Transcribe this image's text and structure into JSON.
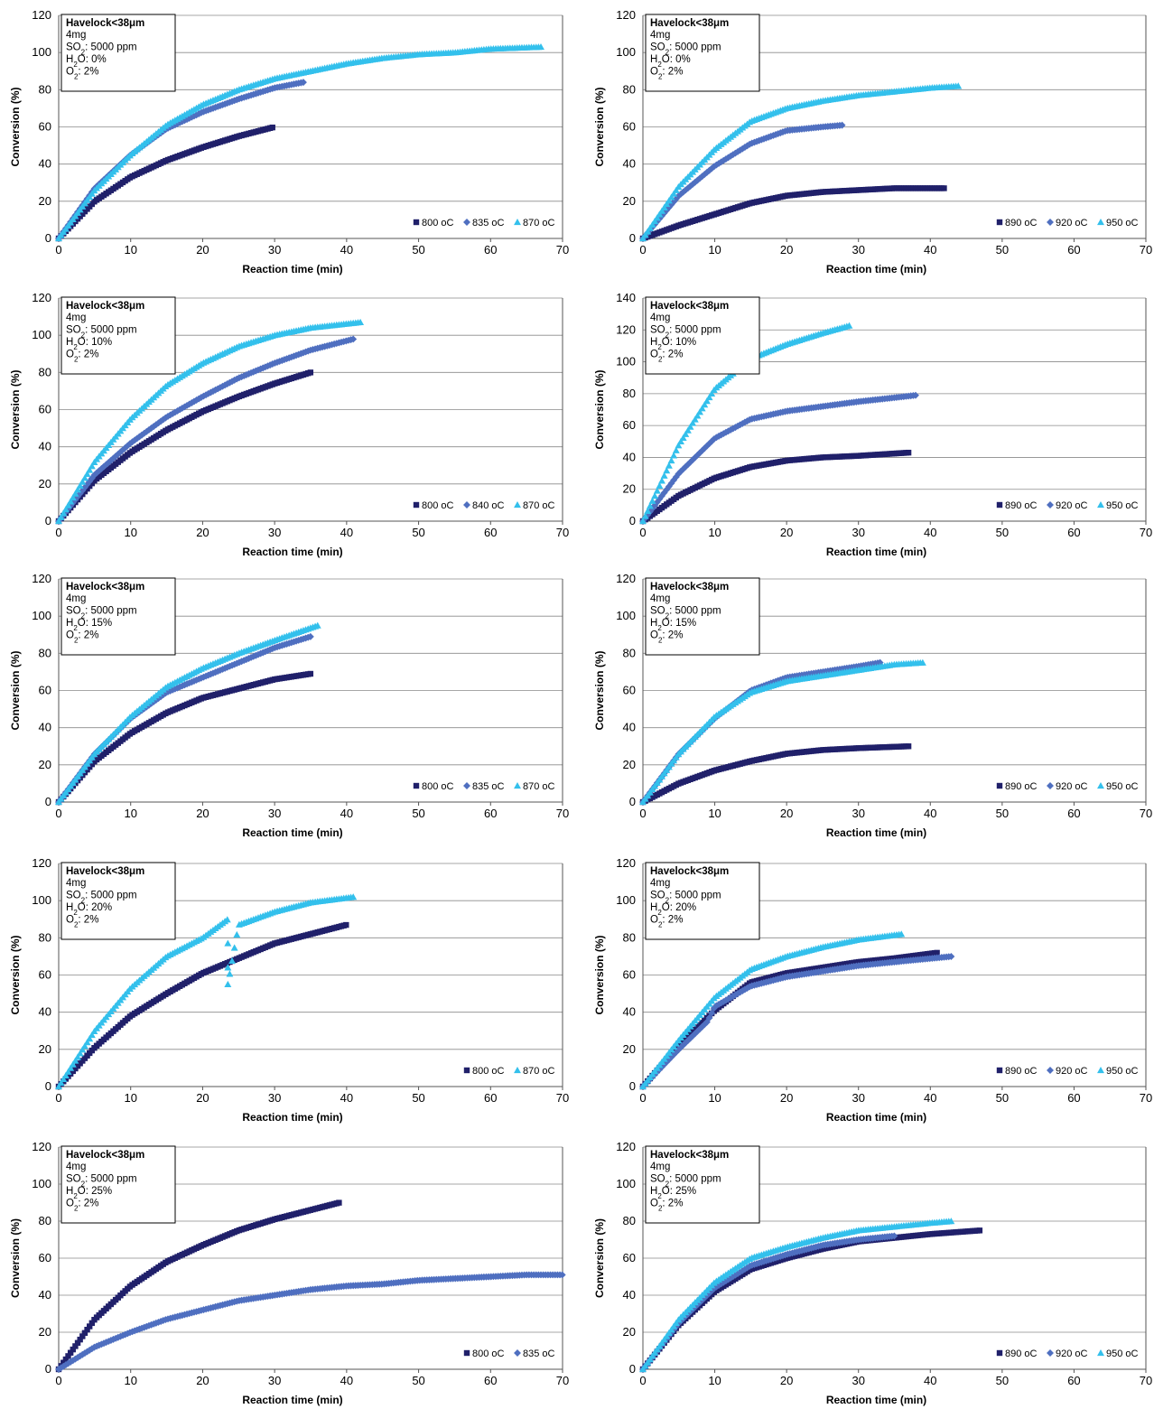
{
  "colors": {
    "dark": "#20206a",
    "mid": "#4f6fc0",
    "light": "#33c0ec",
    "grid": "#8a8a8a",
    "axis": "#555555"
  },
  "chart_data": [
    {
      "type": "scatter",
      "annotation": {
        "title": "Havelock<38μm",
        "lines": [
          "4mg",
          "SO2: 5000 ppm",
          "H2O: 0%",
          "O2: 2%"
        ]
      },
      "xlabel": "Reaction time (min)",
      "ylabel": "Conversion (%)",
      "xlim": [
        0,
        70
      ],
      "ylim": [
        0,
        120
      ],
      "xticks": [
        0,
        10,
        20,
        30,
        40,
        50,
        60,
        70
      ],
      "yticks": [
        0,
        20,
        40,
        60,
        80,
        100,
        120
      ],
      "grid": "horizontal",
      "legend_position": "bottom-right",
      "series": [
        {
          "name": "800 oC",
          "marker": "square",
          "color": "dark",
          "x": [
            0,
            5,
            10,
            15,
            20,
            25,
            30
          ],
          "y": [
            0,
            20,
            33,
            42,
            49,
            55,
            60
          ]
        },
        {
          "name": "835 oC",
          "marker": "diamond",
          "color": "mid",
          "x": [
            0,
            5,
            10,
            15,
            20,
            25,
            30,
            34
          ],
          "y": [
            0,
            27,
            45,
            59,
            68,
            75,
            81,
            84
          ]
        },
        {
          "name": "870 oC",
          "marker": "triangle",
          "color": "light",
          "x": [
            0,
            5,
            10,
            15,
            20,
            25,
            30,
            35,
            40,
            45,
            50,
            55,
            60,
            67
          ],
          "y": [
            0,
            26,
            45,
            61,
            72,
            80,
            86,
            90,
            94,
            97,
            99,
            100,
            102,
            103
          ]
        }
      ]
    },
    {
      "type": "scatter",
      "annotation": {
        "title": "Havelock<38μm",
        "lines": [
          "4mg",
          "SO2: 5000 ppm",
          "H2O: 0%",
          "O2: 2%"
        ]
      },
      "xlabel": "Reaction time (min)",
      "ylabel": "Conversion (%)",
      "xlim": [
        0,
        70
      ],
      "ylim": [
        0,
        120
      ],
      "xticks": [
        0,
        10,
        20,
        30,
        40,
        50,
        60,
        70
      ],
      "yticks": [
        0,
        20,
        40,
        60,
        80,
        100,
        120
      ],
      "grid": "horizontal",
      "legend_position": "bottom-right",
      "series": [
        {
          "name": "890 oC",
          "marker": "square",
          "color": "dark",
          "x": [
            0,
            5,
            10,
            15,
            20,
            25,
            30,
            35,
            42
          ],
          "y": [
            0,
            7,
            13,
            19,
            23,
            25,
            26,
            27,
            27
          ]
        },
        {
          "name": "920 oC",
          "marker": "diamond",
          "color": "mid",
          "x": [
            0,
            5,
            10,
            15,
            20,
            25,
            28
          ],
          "y": [
            0,
            23,
            39,
            51,
            58,
            60,
            61
          ]
        },
        {
          "name": "950 oC",
          "marker": "triangle",
          "color": "light",
          "x": [
            0,
            5,
            10,
            15,
            20,
            25,
            30,
            35,
            40,
            44
          ],
          "y": [
            0,
            28,
            48,
            63,
            70,
            74,
            77,
            79,
            81,
            82
          ]
        }
      ]
    },
    {
      "type": "scatter",
      "annotation": {
        "title": "Havelock<38μm",
        "lines": [
          "4mg",
          "SO2: 5000 ppm",
          "H2O: 10%",
          "O2: 2%"
        ]
      },
      "xlabel": "Reaction time (min)",
      "ylabel": "Conversion (%)",
      "xlim": [
        0,
        70
      ],
      "ylim": [
        0,
        120
      ],
      "xticks": [
        0,
        10,
        20,
        30,
        40,
        50,
        60,
        70
      ],
      "yticks": [
        0,
        20,
        40,
        60,
        80,
        100,
        120
      ],
      "grid": "horizontal",
      "legend_position": "bottom-right",
      "series": [
        {
          "name": "800 oC",
          "marker": "square",
          "color": "dark",
          "x": [
            0,
            5,
            10,
            15,
            20,
            25,
            30,
            35
          ],
          "y": [
            0,
            22,
            37,
            49,
            59,
            67,
            74,
            80
          ]
        },
        {
          "name": "840 oC",
          "marker": "diamond",
          "color": "mid",
          "x": [
            0,
            5,
            10,
            15,
            20,
            25,
            30,
            35,
            41
          ],
          "y": [
            0,
            25,
            42,
            56,
            67,
            77,
            85,
            92,
            98
          ]
        },
        {
          "name": "870 oC",
          "marker": "triangle",
          "color": "light",
          "x": [
            0,
            5,
            10,
            15,
            20,
            25,
            30,
            35,
            42
          ],
          "y": [
            0,
            32,
            55,
            73,
            85,
            94,
            100,
            104,
            107
          ]
        }
      ]
    },
    {
      "type": "scatter",
      "annotation": {
        "title": "Havelock<38μm",
        "lines": [
          "4mg",
          "SO2: 5000 ppm",
          "H2O: 10%",
          "O2: 2%"
        ]
      },
      "xlabel": "Reaction time (min)",
      "ylabel": "Conversion (%)",
      "xlim": [
        0,
        70
      ],
      "ylim": [
        0,
        140
      ],
      "xticks": [
        0,
        10,
        20,
        30,
        40,
        50,
        60,
        70
      ],
      "yticks": [
        0,
        20,
        40,
        60,
        80,
        100,
        120,
        140
      ],
      "grid": "horizontal",
      "legend_position": "bottom-right",
      "series": [
        {
          "name": "890 oC",
          "marker": "square",
          "color": "dark",
          "x": [
            0,
            5,
            10,
            15,
            20,
            25,
            30,
            37
          ],
          "y": [
            0,
            16,
            27,
            34,
            38,
            40,
            41,
            43
          ]
        },
        {
          "name": "920 oC",
          "marker": "diamond",
          "color": "mid",
          "x": [
            0,
            5,
            10,
            15,
            20,
            25,
            30,
            38
          ],
          "y": [
            0,
            30,
            52,
            64,
            69,
            72,
            75,
            79
          ]
        },
        {
          "name": "950 oC",
          "marker": "triangle",
          "color": "light",
          "x": [
            0,
            5,
            10,
            15,
            20,
            25,
            29
          ],
          "y": [
            0,
            48,
            83,
            102,
            111,
            118,
            123
          ]
        }
      ]
    },
    {
      "type": "scatter",
      "annotation": {
        "title": "Havelock<38μm",
        "lines": [
          "4mg",
          "SO2: 5000 ppm",
          "H2O: 15%",
          "O2: 2%"
        ]
      },
      "xlabel": "Reaction time (min)",
      "ylabel": "Conversion (%)",
      "xlim": [
        0,
        70
      ],
      "ylim": [
        0,
        120
      ],
      "xticks": [
        0,
        10,
        20,
        30,
        40,
        50,
        60,
        70
      ],
      "yticks": [
        0,
        20,
        40,
        60,
        80,
        100,
        120
      ],
      "grid": "horizontal",
      "legend_position": "bottom-right",
      "series": [
        {
          "name": "800 oC",
          "marker": "square",
          "color": "dark",
          "x": [
            0,
            5,
            10,
            15,
            20,
            25,
            30,
            35
          ],
          "y": [
            0,
            22,
            37,
            48,
            56,
            61,
            66,
            69
          ]
        },
        {
          "name": "835 oC",
          "marker": "diamond",
          "color": "mid",
          "x": [
            0,
            5,
            10,
            15,
            20,
            25,
            30,
            35
          ],
          "y": [
            0,
            26,
            45,
            59,
            67,
            75,
            83,
            89
          ]
        },
        {
          "name": "870 oC",
          "marker": "triangle",
          "color": "light",
          "x": [
            0,
            5,
            10,
            15,
            20,
            25,
            30,
            36
          ],
          "y": [
            0,
            26,
            46,
            62,
            72,
            80,
            87,
            95
          ]
        }
      ]
    },
    {
      "type": "scatter",
      "annotation": {
        "title": "Havelock<38μm",
        "lines": [
          "4mg",
          "SO2: 5000 ppm",
          "H2O: 15%",
          "O2: 2%"
        ]
      },
      "xlabel": "Reaction time (min)",
      "ylabel": "Conversion (%)",
      "xlim": [
        0,
        70
      ],
      "ylim": [
        0,
        120
      ],
      "xticks": [
        0,
        10,
        20,
        30,
        40,
        50,
        60,
        70
      ],
      "yticks": [
        0,
        20,
        40,
        60,
        80,
        100,
        120
      ],
      "grid": "horizontal",
      "legend_position": "bottom-right",
      "series": [
        {
          "name": "890 oC",
          "marker": "square",
          "color": "dark",
          "x": [
            0,
            5,
            10,
            15,
            20,
            25,
            30,
            37
          ],
          "y": [
            0,
            10,
            17,
            22,
            26,
            28,
            29,
            30
          ]
        },
        {
          "name": "920 oC",
          "marker": "diamond",
          "color": "mid",
          "x": [
            0,
            5,
            10,
            15,
            20,
            25,
            30,
            33
          ],
          "y": [
            0,
            26,
            45,
            60,
            67,
            70,
            73,
            75
          ]
        },
        {
          "name": "950 oC",
          "marker": "triangle",
          "color": "light",
          "x": [
            0,
            5,
            10,
            15,
            20,
            25,
            30,
            35,
            39
          ],
          "y": [
            0,
            26,
            46,
            59,
            65,
            68,
            71,
            74,
            75
          ]
        }
      ]
    },
    {
      "type": "scatter",
      "annotation": {
        "title": "Havelock<38μm",
        "lines": [
          "4mg",
          "SO2: 5000 ppm",
          "H2O: 20%",
          "O2: 2%"
        ]
      },
      "xlabel": "Reaction time (min)",
      "ylabel": "Conversion (%)",
      "xlim": [
        0,
        70
      ],
      "ylim": [
        0,
        120
      ],
      "xticks": [
        0,
        10,
        20,
        30,
        40,
        50,
        60,
        70
      ],
      "yticks": [
        0,
        20,
        40,
        60,
        80,
        100,
        120
      ],
      "grid": "horizontal",
      "legend_position": "bottom-right",
      "series": [
        {
          "name": "800 oC",
          "marker": "square",
          "color": "dark",
          "x": [
            0,
            5,
            10,
            15,
            20,
            25,
            30,
            35,
            40
          ],
          "y": [
            0,
            21,
            38,
            50,
            61,
            69,
            77,
            82,
            87
          ]
        },
        {
          "name": "870 oC",
          "marker": "triangle",
          "color": "light",
          "x": [
            0,
            5,
            10,
            15,
            20,
            23.5,
            23.5,
            23.5,
            23.5,
            25,
            30,
            35,
            41
          ],
          "y": [
            0,
            30,
            53,
            70,
            80,
            90,
            77,
            64,
            55,
            87,
            94,
            99,
            102
          ]
        }
      ]
    },
    {
      "type": "scatter",
      "annotation": {
        "title": "Havelock<38μm",
        "lines": [
          "4mg",
          "SO2: 5000 ppm",
          "H2O: 20%",
          "O2: 2%"
        ]
      },
      "xlabel": "Reaction time (min)",
      "ylabel": "Conversion (%)",
      "xlim": [
        0,
        70
      ],
      "ylim": [
        0,
        120
      ],
      "xticks": [
        0,
        10,
        20,
        30,
        40,
        50,
        60,
        70
      ],
      "yticks": [
        0,
        20,
        40,
        60,
        80,
        100,
        120
      ],
      "grid": "horizontal",
      "legend_position": "bottom-right",
      "series": [
        {
          "name": "890 oC",
          "marker": "square",
          "color": "dark",
          "x": [
            0,
            5,
            10,
            15,
            20,
            25,
            30,
            35,
            41
          ],
          "y": [
            0,
            22,
            41,
            56,
            61,
            64,
            67,
            69,
            72
          ]
        },
        {
          "name": "920 oC",
          "marker": "diamond",
          "color": "mid",
          "x": [
            0,
            5,
            9,
            10,
            15,
            20,
            25,
            30,
            35,
            43
          ],
          "y": [
            0,
            20,
            35,
            43,
            54,
            59,
            62,
            65,
            67,
            70
          ]
        },
        {
          "name": "950 oC",
          "marker": "triangle",
          "color": "light",
          "x": [
            0,
            5,
            10,
            15,
            20,
            25,
            30,
            36
          ],
          "y": [
            0,
            25,
            48,
            63,
            70,
            75,
            79,
            82
          ]
        }
      ]
    },
    {
      "type": "scatter",
      "annotation": {
        "title": "Havelock<38μm",
        "lines": [
          "4mg",
          "SO2: 5000 ppm",
          "H2O: 25%",
          "O2: 2%"
        ]
      },
      "xlabel": "Reaction time (min)",
      "ylabel": "Conversion (%)",
      "xlim": [
        0,
        70
      ],
      "ylim": [
        0,
        120
      ],
      "xticks": [
        0,
        10,
        20,
        30,
        40,
        50,
        60,
        70
      ],
      "yticks": [
        0,
        20,
        40,
        60,
        80,
        100,
        120
      ],
      "grid": "horizontal",
      "legend_position": "bottom-right",
      "series": [
        {
          "name": "800 oC",
          "marker": "square",
          "color": "dark",
          "x": [
            0,
            5,
            10,
            15,
            20,
            25,
            30,
            35,
            39
          ],
          "y": [
            0,
            27,
            45,
            58,
            67,
            75,
            81,
            86,
            90
          ]
        },
        {
          "name": "835 oC",
          "marker": "diamond",
          "color": "mid",
          "x": [
            0,
            5,
            10,
            15,
            20,
            25,
            30,
            35,
            40,
            45,
            50,
            55,
            60,
            65,
            70
          ],
          "y": [
            0,
            12,
            20,
            27,
            32,
            37,
            40,
            43,
            45,
            46,
            48,
            49,
            50,
            51,
            51
          ]
        }
      ]
    },
    {
      "type": "scatter",
      "annotation": {
        "title": "Havelock<38μm",
        "lines": [
          "4mg",
          "SO2: 5000 ppm",
          "H2O: 25%",
          "O2: 2%"
        ]
      },
      "xlabel": "Reaction time (min)",
      "ylabel": "Conversion (%)",
      "xlim": [
        0,
        70
      ],
      "ylim": [
        0,
        120
      ],
      "xticks": [
        0,
        10,
        20,
        30,
        40,
        50,
        60,
        70
      ],
      "yticks": [
        0,
        20,
        40,
        60,
        80,
        100,
        120
      ],
      "grid": "horizontal",
      "legend_position": "bottom-right",
      "series": [
        {
          "name": "890 oC",
          "marker": "square",
          "color": "dark",
          "x": [
            0,
            5,
            10,
            15,
            20,
            25,
            30,
            35,
            40,
            47
          ],
          "y": [
            0,
            24,
            42,
            54,
            60,
            65,
            69,
            71,
            73,
            75
          ]
        },
        {
          "name": "920 oC",
          "marker": "diamond",
          "color": "mid",
          "x": [
            0,
            5,
            10,
            15,
            20,
            25,
            30,
            35
          ],
          "y": [
            0,
            25,
            44,
            56,
            62,
            67,
            70,
            72
          ]
        },
        {
          "name": "950 oC",
          "marker": "triangle",
          "color": "light",
          "x": [
            0,
            5,
            10,
            15,
            20,
            25,
            30,
            35,
            40,
            43
          ],
          "y": [
            0,
            27,
            47,
            60,
            66,
            71,
            75,
            77,
            79,
            80
          ]
        }
      ]
    }
  ]
}
